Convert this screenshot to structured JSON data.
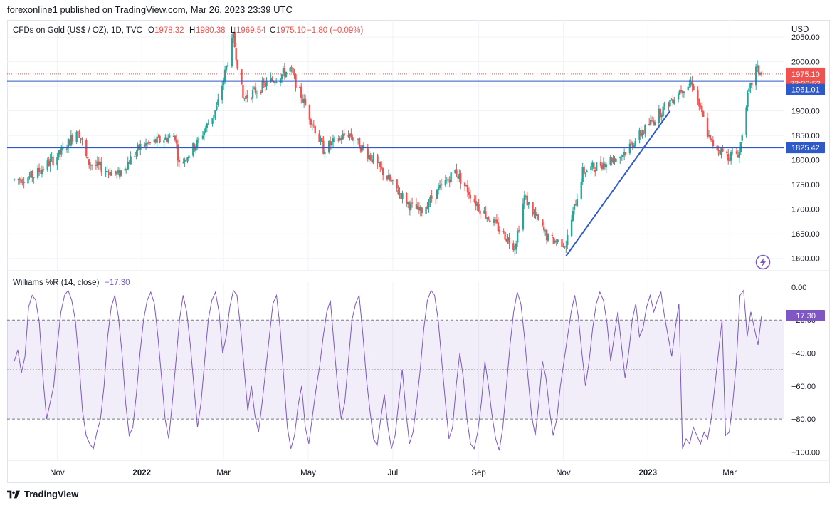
{
  "header": {
    "published": "forexonline1 published on TradingView.com, Mar 26, 2023 23:39 UTC"
  },
  "main": {
    "title": "CFDs on Gold (US$ / OZ), 1D, TVC",
    "ohlc": {
      "o_label": "O",
      "o_value": "1978.32",
      "h_label": "H",
      "h_value": "1980.38",
      "l_label": "L",
      "l_value": "1969.54",
      "c_label": "C",
      "c_value": "1975.10",
      "change": "−1.80 (−0.09%)"
    },
    "currency": "USD",
    "price_badge": "1975.10",
    "countdown_badge": "22:20:52",
    "level_1_badge": "1961.01",
    "level_2_badge": "1825.42"
  },
  "indicator": {
    "title": "Williams %R (14, close)",
    "value": "−17.30",
    "badge": "−17.30"
  },
  "footer": {
    "brand": "TradingView"
  },
  "colors": {
    "up": "#26a69a",
    "down": "#ef5350",
    "line": "#2f59c6",
    "wr": "#7e57c2",
    "badge_wr": "#7e57c2"
  },
  "chart_data": [
    {
      "type": "candlestick",
      "title": "CFDs on Gold (US$ / OZ), 1D, TVC",
      "ylabel": "USD",
      "ylim": [
        1575,
        2085
      ],
      "y_ticks": [
        "2050.00",
        "2000.00",
        "1950.00",
        "1900.00",
        "1850.00",
        "1800.00",
        "1750.00",
        "1700.00",
        "1650.00",
        "1600.00"
      ],
      "y_tick_values": [
        2050,
        2000,
        1950,
        1900,
        1850,
        1800,
        1750,
        1700,
        1650,
        1600
      ],
      "x_ticks": [
        "Nov",
        "2022",
        "Mar",
        "May",
        "Jul",
        "Sep",
        "Nov",
        "2023",
        "Mar"
      ],
      "x_tick_dates": [
        "2021-11-01",
        "2022-01-01",
        "2022-03-01",
        "2022-05-01",
        "2022-07-01",
        "2022-09-01",
        "2022-11-01",
        "2023-01-01",
        "2023-03-01"
      ],
      "date_range": [
        "2021-10-01",
        "2023-03-24"
      ],
      "close_path": [
        [
          "2021-10-01",
          1760
        ],
        [
          "2021-10-15",
          1768
        ],
        [
          "2021-11-05",
          1818
        ],
        [
          "2021-11-16",
          1865
        ],
        [
          "2021-11-23",
          1795
        ],
        [
          "2021-12-15",
          1770
        ],
        [
          "2021-12-31",
          1828
        ],
        [
          "2022-01-25",
          1850
        ],
        [
          "2022-01-28",
          1790
        ],
        [
          "2022-02-10",
          1835
        ],
        [
          "2022-02-24",
          1905
        ],
        [
          "2022-03-08",
          2050
        ],
        [
          "2022-03-15",
          1925
        ],
        [
          "2022-04-18",
          1985
        ],
        [
          "2022-05-12",
          1822
        ],
        [
          "2022-05-30",
          1855
        ],
        [
          "2022-06-14",
          1810
        ],
        [
          "2022-07-14",
          1705
        ],
        [
          "2022-07-21",
          1695
        ],
        [
          "2022-08-15",
          1778
        ],
        [
          "2022-09-01",
          1705
        ],
        [
          "2022-09-27",
          1625
        ],
        [
          "2022-10-04",
          1725
        ],
        [
          "2022-10-21",
          1640
        ],
        [
          "2022-11-03",
          1630
        ],
        [
          "2022-11-15",
          1776
        ],
        [
          "2022-12-13",
          1810
        ],
        [
          "2023-01-25",
          1945
        ],
        [
          "2023-02-02",
          1958
        ],
        [
          "2023-02-15",
          1836
        ],
        [
          "2023-02-28",
          1808
        ],
        [
          "2023-03-08",
          1815
        ],
        [
          "2023-03-13",
          1918
        ],
        [
          "2023-03-20",
          1985
        ],
        [
          "2023-03-24",
          1975.1
        ]
      ],
      "last_bar": {
        "open": 1978.32,
        "high": 1980.38,
        "low": 1969.54,
        "close": 1975.1,
        "change": -1.8,
        "change_pct": -0.09
      },
      "horizontal_levels": [
        1961.01,
        1825.42
      ],
      "trendline": {
        "from": [
          "2022-11-03",
          1605
        ],
        "to": [
          "2023-01-17",
          1900
        ]
      }
    },
    {
      "type": "line",
      "title": "Williams %R (14, close)",
      "ylim": [
        -105,
        3
      ],
      "y_ticks": [
        "0.00",
        "−20.00",
        "−40.00",
        "−60.00",
        "−80.00",
        "−100.00"
      ],
      "y_tick_values": [
        0,
        -20,
        -40,
        -60,
        -80,
        -100
      ],
      "bands": {
        "upper": -20,
        "middle": -50,
        "lower": -80
      },
      "last_value": -17.3,
      "values": [
        -45,
        -38,
        -52,
        -42,
        -12,
        -5,
        -8,
        -22,
        -55,
        -80,
        -70,
        -60,
        -35,
        -15,
        -5,
        -2,
        -8,
        -20,
        -45,
        -75,
        -90,
        -95,
        -98,
        -88,
        -80,
        -60,
        -30,
        -12,
        -5,
        -18,
        -40,
        -70,
        -90,
        -85,
        -65,
        -40,
        -20,
        -8,
        -3,
        -10,
        -30,
        -55,
        -80,
        -92,
        -70,
        -45,
        -20,
        -5,
        -15,
        -35,
        -60,
        -85,
        -70,
        -45,
        -20,
        -8,
        -3,
        -15,
        -40,
        -30,
        -12,
        -2,
        -5,
        -25,
        -50,
        -75,
        -60,
        -78,
        -88,
        -70,
        -50,
        -30,
        -10,
        -5,
        -25,
        -55,
        -85,
        -98,
        -90,
        -72,
        -60,
        -85,
        -95,
        -78,
        -62,
        -48,
        -30,
        -15,
        -8,
        -35,
        -60,
        -80,
        -70,
        -45,
        -20,
        -10,
        -5,
        -28,
        -55,
        -75,
        -92,
        -96,
        -80,
        -65,
        -85,
        -98,
        -90,
        -70,
        -50,
        -75,
        -95,
        -88,
        -70,
        -50,
        -25,
        -8,
        -2,
        -5,
        -20,
        -45,
        -70,
        -92,
        -85,
        -60,
        -40,
        -55,
        -80,
        -95,
        -98,
        -88,
        -70,
        -45,
        -60,
        -78,
        -92,
        -99,
        -85,
        -60,
        -35,
        -15,
        -3,
        -10,
        -30,
        -55,
        -78,
        -90,
        -70,
        -45,
        -55,
        -75,
        -90,
        -80,
        -60,
        -45,
        -30,
        -15,
        -5,
        -18,
        -40,
        -60,
        -45,
        -25,
        -10,
        -3,
        -8,
        -22,
        -45,
        -30,
        -15,
        -35,
        -55,
        -40,
        -20,
        -10,
        -30,
        -25,
        -12,
        -5,
        -15,
        -8,
        -3,
        -18,
        -30,
        -42,
        -25,
        -10,
        -98,
        -92,
        -95,
        -85,
        -90,
        -95,
        -88,
        -92,
        -80,
        -60,
        -40,
        -20,
        -90,
        -88,
        -70,
        -45,
        -5,
        -2,
        -30,
        -15,
        -25,
        -35,
        -17.3
      ]
    }
  ]
}
